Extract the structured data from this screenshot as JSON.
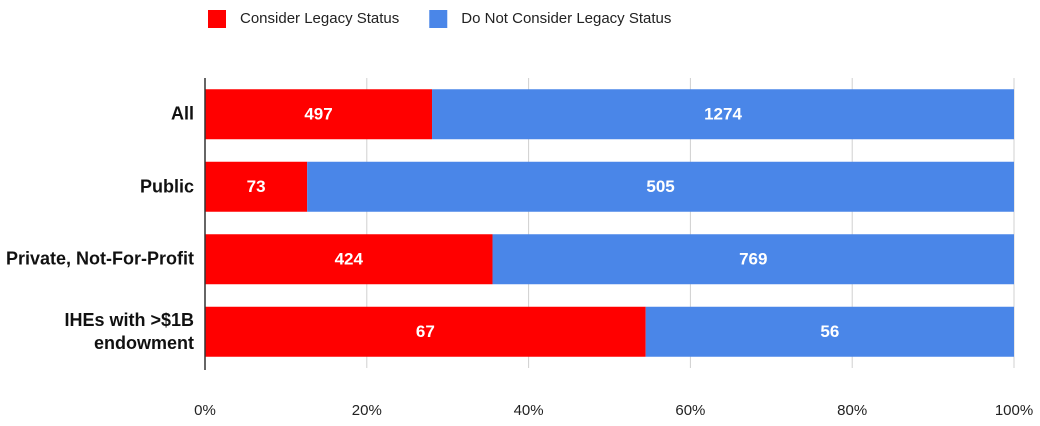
{
  "chart_data": {
    "type": "bar",
    "orientation": "horizontal",
    "stacking": "percent",
    "categories": [
      "All",
      "Public",
      "Private, Not-For-Profit",
      "IHEs with >$1B endowment"
    ],
    "series": [
      {
        "name": "Consider Legacy Status",
        "color": "#ff0000",
        "values": [
          497,
          73,
          424,
          67
        ]
      },
      {
        "name": "Do Not Consider Legacy Status",
        "color": "#4a86e8",
        "values": [
          1274,
          505,
          769,
          56
        ]
      }
    ],
    "xlim": [
      0,
      100
    ],
    "xticks": [
      {
        "value": 0,
        "label": "0%"
      },
      {
        "value": 20,
        "label": "20%"
      },
      {
        "value": 40,
        "label": "40%"
      },
      {
        "value": 60,
        "label": "60%"
      },
      {
        "value": 80,
        "label": "80%"
      },
      {
        "value": 100,
        "label": "100%"
      }
    ],
    "grid": true,
    "legend": "top"
  }
}
